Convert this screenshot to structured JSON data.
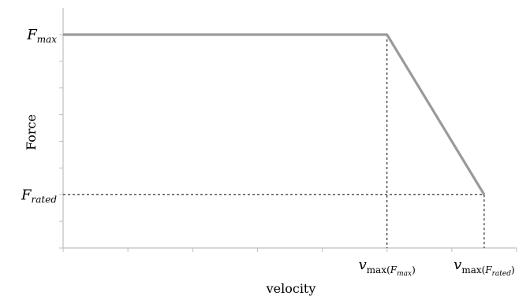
{
  "chart_data": {
    "type": "line",
    "title": "",
    "xlabel": "velocity",
    "ylabel": "Force",
    "grid": false,
    "legend": "none",
    "ylim": [
      0,
      8
    ],
    "y_ticks_count": 8,
    "xlim": [
      0,
      7
    ],
    "x_ticks_count": 7,
    "series": [
      {
        "color": "#9a9a9a",
        "points": [
          {
            "x": 0,
            "y": 8
          },
          {
            "x": 5,
            "y": 8
          },
          {
            "x": 6.5,
            "y": 2
          }
        ]
      }
    ],
    "y_labels": [
      {
        "at": 8,
        "base": "F",
        "sub": "max"
      },
      {
        "at": 2,
        "base": "F",
        "sub": "rated"
      }
    ],
    "x_labels": [
      {
        "at": 5,
        "base": "v",
        "sub_prefix": "max",
        "sub_base": "F",
        "sub_sub": "max"
      },
      {
        "at": 6.5,
        "base": "v",
        "sub_prefix": "max",
        "sub_base": "F",
        "sub_sub": "rated"
      }
    ],
    "guide_lines": [
      {
        "from": {
          "x": 0,
          "y": 2
        },
        "to": {
          "x": 6.5,
          "y": 2
        }
      },
      {
        "from": {
          "x": 5,
          "y": 8
        },
        "to": {
          "x": 5,
          "y": 0
        }
      },
      {
        "from": {
          "x": 6.5,
          "y": 2
        },
        "to": {
          "x": 6.5,
          "y": 0
        }
      }
    ]
  }
}
